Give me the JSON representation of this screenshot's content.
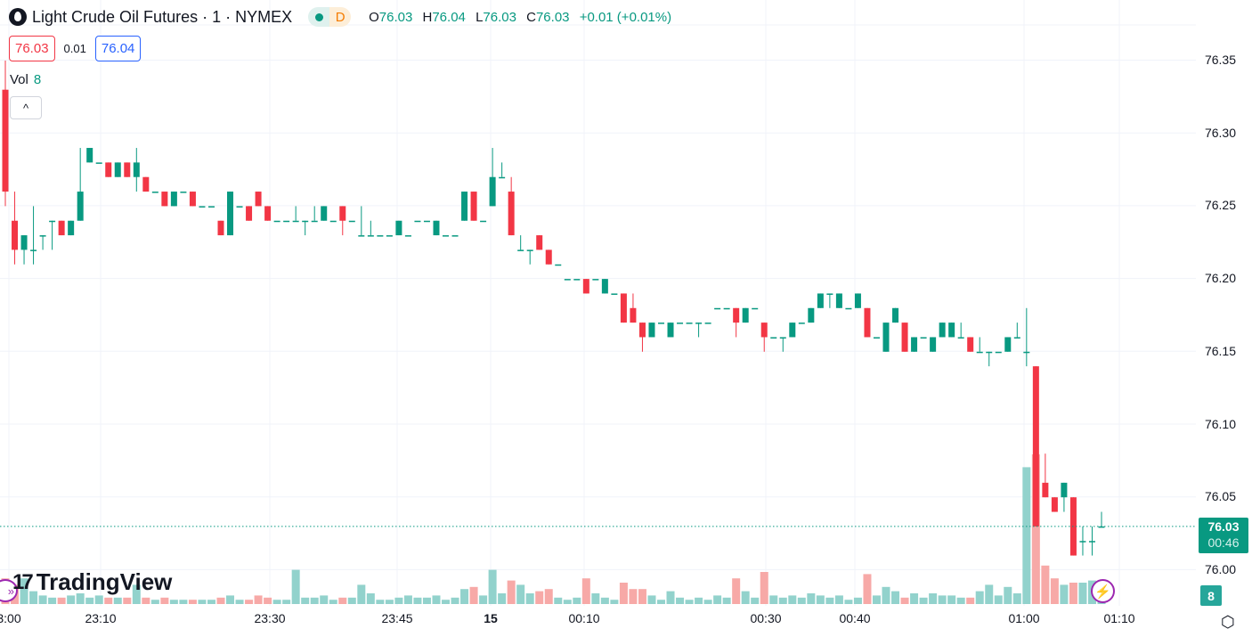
{
  "header": {
    "symbol_title": "Light Crude Oil Futures · 1 · NYMEX",
    "session_badge": "D",
    "ohlc": {
      "o_label": "O",
      "o": "76.03",
      "h_label": "H",
      "h": "76.04",
      "l_label": "L",
      "l": "76.03",
      "c_label": "C",
      "c": "76.03",
      "change": "+0.01 (+0.01%)"
    }
  },
  "quote": {
    "sell": "76.03",
    "spread": "0.01",
    "buy": "76.04"
  },
  "volume_legend": {
    "label": "Vol",
    "value": "8"
  },
  "collapse_icon": "^",
  "price_axis": {
    "labels": [
      "76.35",
      "76.30",
      "76.25",
      "76.20",
      "76.15",
      "76.10",
      "76.05",
      "76.00"
    ],
    "last_price": "76.03",
    "countdown": "00:46",
    "last_volume": "8"
  },
  "time_axis": {
    "labels": [
      "3:00",
      "23:10",
      "23:30",
      "23:45",
      "15",
      "00:10",
      "00:30",
      "00:40",
      "01:00",
      "01:10"
    ]
  },
  "branding": {
    "logo_text": "TradingView",
    "logo_mark": "17"
  },
  "colors": {
    "up": "#089981",
    "down": "#f23645",
    "vol_up": "#92d2cc",
    "vol_down": "#f7a9a7"
  },
  "chart_data": {
    "type": "candlestick",
    "ylim": [
      75.975,
      76.375
    ],
    "candles_ohlcv": [
      [
        76.33,
        76.35,
        76.25,
        76.26,
        12
      ],
      [
        76.24,
        76.26,
        76.21,
        76.22,
        9
      ],
      [
        76.22,
        76.23,
        76.21,
        76.23,
        12
      ],
      [
        76.22,
        76.25,
        76.21,
        76.22,
        6
      ],
      [
        76.23,
        76.23,
        76.22,
        76.23,
        4
      ],
      [
        76.24,
        76.24,
        76.22,
        76.24,
        3
      ],
      [
        76.24,
        76.24,
        76.23,
        76.23,
        3
      ],
      [
        76.23,
        76.24,
        76.23,
        76.24,
        4
      ],
      [
        76.24,
        76.29,
        76.24,
        76.26,
        5
      ],
      [
        76.28,
        76.29,
        76.28,
        76.29,
        3
      ],
      [
        76.28,
        76.28,
        76.28,
        76.28,
        4
      ],
      [
        76.28,
        76.28,
        76.27,
        76.27,
        3
      ],
      [
        76.27,
        76.28,
        76.27,
        76.28,
        3
      ],
      [
        76.28,
        76.28,
        76.27,
        76.27,
        3
      ],
      [
        76.27,
        76.29,
        76.26,
        76.28,
        9
      ],
      [
        76.27,
        76.27,
        76.26,
        76.26,
        3
      ],
      [
        76.26,
        76.26,
        76.26,
        76.26,
        2
      ],
      [
        76.26,
        76.26,
        76.25,
        76.25,
        3
      ],
      [
        76.25,
        76.26,
        76.25,
        76.26,
        2
      ],
      [
        76.26,
        76.26,
        76.26,
        76.26,
        2
      ],
      [
        76.26,
        76.26,
        76.25,
        76.25,
        2
      ],
      [
        76.25,
        76.25,
        76.25,
        76.25,
        2
      ],
      [
        76.25,
        76.25,
        76.25,
        76.25,
        2
      ],
      [
        76.24,
        76.24,
        76.23,
        76.23,
        3
      ],
      [
        76.23,
        76.26,
        76.23,
        76.26,
        4
      ],
      [
        76.25,
        76.25,
        76.25,
        76.25,
        2
      ],
      [
        76.25,
        76.25,
        76.24,
        76.24,
        2
      ],
      [
        76.26,
        76.26,
        76.25,
        76.25,
        4
      ],
      [
        76.25,
        76.25,
        76.24,
        76.24,
        3
      ],
      [
        76.24,
        76.24,
        76.24,
        76.24,
        2
      ],
      [
        76.24,
        76.24,
        76.24,
        76.24,
        2
      ],
      [
        76.24,
        76.25,
        76.24,
        76.24,
        16
      ],
      [
        76.24,
        76.24,
        76.23,
        76.24,
        3
      ],
      [
        76.24,
        76.25,
        76.24,
        76.24,
        3
      ],
      [
        76.24,
        76.25,
        76.24,
        76.25,
        4
      ],
      [
        76.24,
        76.24,
        76.24,
        76.24,
        2
      ],
      [
        76.25,
        76.25,
        76.23,
        76.24,
        3
      ],
      [
        76.24,
        76.24,
        76.24,
        76.24,
        3
      ],
      [
        76.23,
        76.25,
        76.23,
        76.23,
        9
      ],
      [
        76.23,
        76.24,
        76.23,
        76.23,
        5
      ],
      [
        76.23,
        76.23,
        76.23,
        76.23,
        2
      ],
      [
        76.23,
        76.23,
        76.23,
        76.23,
        2
      ],
      [
        76.23,
        76.24,
        76.23,
        76.24,
        3
      ],
      [
        76.23,
        76.23,
        76.23,
        76.23,
        4
      ],
      [
        76.24,
        76.24,
        76.24,
        76.24,
        3
      ],
      [
        76.24,
        76.24,
        76.24,
        76.24,
        3
      ],
      [
        76.23,
        76.24,
        76.23,
        76.24,
        4
      ],
      [
        76.23,
        76.23,
        76.23,
        76.23,
        2
      ],
      [
        76.23,
        76.23,
        76.23,
        76.23,
        3
      ],
      [
        76.24,
        76.26,
        76.24,
        76.26,
        7
      ],
      [
        76.26,
        76.26,
        76.24,
        76.24,
        8
      ],
      [
        76.24,
        76.24,
        76.24,
        76.24,
        4
      ],
      [
        76.25,
        76.29,
        76.25,
        76.27,
        16
      ],
      [
        76.27,
        76.28,
        76.27,
        76.27,
        5
      ],
      [
        76.26,
        76.27,
        76.23,
        76.23,
        11
      ],
      [
        76.22,
        76.23,
        76.22,
        76.22,
        9
      ],
      [
        76.22,
        76.22,
        76.21,
        76.22,
        5
      ],
      [
        76.23,
        76.23,
        76.22,
        76.22,
        6
      ],
      [
        76.22,
        76.22,
        76.21,
        76.21,
        7
      ],
      [
        76.21,
        76.21,
        76.21,
        76.21,
        3
      ],
      [
        76.2,
        76.2,
        76.2,
        76.2,
        2
      ],
      [
        76.2,
        76.2,
        76.2,
        76.2,
        3
      ],
      [
        76.2,
        76.2,
        76.19,
        76.19,
        12
      ],
      [
        76.2,
        76.2,
        76.2,
        76.2,
        5
      ],
      [
        76.19,
        76.2,
        76.19,
        76.2,
        3
      ],
      [
        76.19,
        76.19,
        76.19,
        76.19,
        2
      ],
      [
        76.19,
        76.19,
        76.17,
        76.17,
        10
      ],
      [
        76.18,
        76.19,
        76.17,
        76.17,
        7
      ],
      [
        76.17,
        76.17,
        76.15,
        76.16,
        7
      ],
      [
        76.16,
        76.17,
        76.16,
        76.17,
        4
      ],
      [
        76.17,
        76.17,
        76.17,
        76.17,
        2
      ],
      [
        76.16,
        76.17,
        76.16,
        76.17,
        6
      ],
      [
        76.17,
        76.17,
        76.17,
        76.17,
        3
      ],
      [
        76.17,
        76.17,
        76.17,
        76.17,
        2
      ],
      [
        76.17,
        76.17,
        76.16,
        76.17,
        3
      ],
      [
        76.17,
        76.17,
        76.17,
        76.17,
        2
      ],
      [
        76.18,
        76.18,
        76.18,
        76.18,
        4
      ],
      [
        76.18,
        76.18,
        76.18,
        76.18,
        3
      ],
      [
        76.18,
        76.18,
        76.16,
        76.17,
        12
      ],
      [
        76.17,
        76.18,
        76.17,
        76.18,
        6
      ],
      [
        76.18,
        76.18,
        76.18,
        76.18,
        3
      ],
      [
        76.17,
        76.17,
        76.15,
        76.16,
        15
      ],
      [
        76.16,
        76.16,
        76.16,
        76.16,
        4
      ],
      [
        76.16,
        76.16,
        76.15,
        76.16,
        3
      ],
      [
        76.16,
        76.17,
        76.16,
        76.17,
        4
      ],
      [
        76.17,
        76.17,
        76.17,
        76.17,
        3
      ],
      [
        76.17,
        76.18,
        76.17,
        76.18,
        5
      ],
      [
        76.18,
        76.19,
        76.18,
        76.19,
        4
      ],
      [
        76.19,
        76.19,
        76.18,
        76.19,
        3
      ],
      [
        76.18,
        76.19,
        76.18,
        76.19,
        4
      ],
      [
        76.18,
        76.18,
        76.18,
        76.18,
        2
      ],
      [
        76.18,
        76.19,
        76.18,
        76.19,
        3
      ],
      [
        76.18,
        76.18,
        76.16,
        76.16,
        14
      ],
      [
        76.16,
        76.16,
        76.16,
        76.16,
        4
      ],
      [
        76.15,
        76.17,
        76.15,
        76.17,
        8
      ],
      [
        76.17,
        76.18,
        76.17,
        76.18,
        6
      ],
      [
        76.17,
        76.17,
        76.15,
        76.15,
        3
      ],
      [
        76.15,
        76.16,
        76.15,
        76.16,
        5
      ],
      [
        76.16,
        76.16,
        76.16,
        76.16,
        3
      ],
      [
        76.15,
        76.16,
        76.15,
        76.16,
        5
      ],
      [
        76.16,
        76.17,
        76.16,
        76.17,
        4
      ],
      [
        76.16,
        76.17,
        76.16,
        76.17,
        4
      ],
      [
        76.16,
        76.17,
        76.16,
        76.16,
        3
      ],
      [
        76.16,
        76.16,
        76.15,
        76.15,
        3
      ],
      [
        76.15,
        76.16,
        76.15,
        76.15,
        6
      ],
      [
        76.15,
        76.15,
        76.14,
        76.15,
        9
      ],
      [
        76.15,
        76.15,
        76.15,
        76.15,
        4
      ],
      [
        76.15,
        76.16,
        76.15,
        76.16,
        8
      ],
      [
        76.16,
        76.17,
        76.16,
        76.16,
        5
      ],
      [
        76.15,
        76.18,
        76.14,
        76.15,
        64
      ],
      [
        76.14,
        76.14,
        76.03,
        76.03,
        70
      ],
      [
        76.06,
        76.08,
        76.05,
        76.05,
        18
      ],
      [
        76.05,
        76.05,
        76.04,
        76.04,
        12
      ],
      [
        76.05,
        76.06,
        76.04,
        76.06,
        9
      ],
      [
        76.05,
        76.05,
        76.01,
        76.01,
        10
      ],
      [
        76.02,
        76.03,
        76.01,
        76.02,
        10
      ],
      [
        76.02,
        76.03,
        76.01,
        76.02,
        11
      ],
      [
        76.03,
        76.04,
        76.03,
        76.03,
        8
      ]
    ]
  }
}
